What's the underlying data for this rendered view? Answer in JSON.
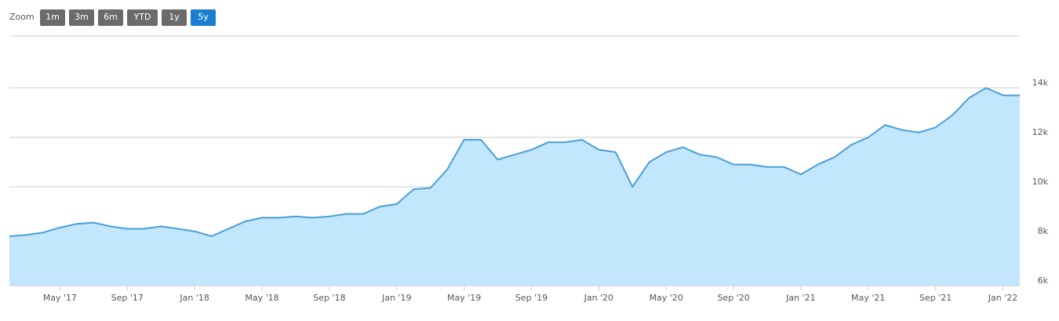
{
  "zoom": {
    "label": "Zoom",
    "buttons": [
      "1m",
      "3m",
      "6m",
      "YTD",
      "1y",
      "5y"
    ],
    "active": "5y"
  },
  "chart_data": {
    "type": "area",
    "x": [
      "2017-02",
      "2017-03",
      "2017-04",
      "2017-05",
      "2017-06",
      "2017-07",
      "2017-08",
      "2017-09",
      "2017-10",
      "2017-11",
      "2017-12",
      "2018-01",
      "2018-02",
      "2018-03",
      "2018-04",
      "2018-05",
      "2018-06",
      "2018-07",
      "2018-08",
      "2018-09",
      "2018-10",
      "2018-11",
      "2018-12",
      "2019-01",
      "2019-02",
      "2019-03",
      "2019-04",
      "2019-05",
      "2019-06",
      "2019-07",
      "2019-08",
      "2019-09",
      "2019-10",
      "2019-11",
      "2019-12",
      "2020-01",
      "2020-02",
      "2020-03",
      "2020-04",
      "2020-05",
      "2020-06",
      "2020-07",
      "2020-08",
      "2020-09",
      "2020-10",
      "2020-11",
      "2020-12",
      "2021-01",
      "2021-02",
      "2021-03",
      "2021-04",
      "2021-05",
      "2021-06",
      "2021-07",
      "2021-08",
      "2021-09",
      "2021-10",
      "2021-11",
      "2021-12",
      "2022-01",
      "2022-02"
    ],
    "values": [
      8000,
      8050,
      8150,
      8350,
      8500,
      8550,
      8400,
      8300,
      8300,
      8400,
      8300,
      8200,
      8000,
      8300,
      8600,
      8750,
      8750,
      8800,
      8750,
      8800,
      8900,
      8900,
      9200,
      9300,
      9900,
      9950,
      10700,
      11900,
      11900,
      11100,
      11300,
      11500,
      11800,
      11800,
      11900,
      11500,
      11400,
      10000,
      11000,
      11400,
      11600,
      11300,
      11200,
      10900,
      10900,
      10800,
      10800,
      10500,
      10900,
      11200,
      11700,
      12000,
      12500,
      12300,
      12200,
      12400,
      12900,
      13600,
      14000,
      13700,
      13700
    ],
    "color": "#4a9fd8",
    "fill": "#c2e6fb",
    "xlim": [
      "2017-02",
      "2022-02"
    ],
    "xticks": [
      {
        "value": "2017-05",
        "label": "May '17"
      },
      {
        "value": "2017-09",
        "label": "Sep '17"
      },
      {
        "value": "2018-01",
        "label": "Jan '18"
      },
      {
        "value": "2018-05",
        "label": "May '18"
      },
      {
        "value": "2018-09",
        "label": "Sep '18"
      },
      {
        "value": "2019-01",
        "label": "Jan '19"
      },
      {
        "value": "2019-05",
        "label": "May '19"
      },
      {
        "value": "2019-09",
        "label": "Sep '19"
      },
      {
        "value": "2020-01",
        "label": "Jan '20"
      },
      {
        "value": "2020-05",
        "label": "May '20"
      },
      {
        "value": "2020-09",
        "label": "Sep '20"
      },
      {
        "value": "2021-01",
        "label": "Jan '21"
      },
      {
        "value": "2021-05",
        "label": "May '21"
      },
      {
        "value": "2021-09",
        "label": "Sep '21"
      },
      {
        "value": "2022-01",
        "label": "Jan '22"
      }
    ],
    "ylim": [
      6000,
      16000
    ],
    "yticks": [
      {
        "value": 6000,
        "label": "6k"
      },
      {
        "value": 8000,
        "label": "8k"
      },
      {
        "value": 10000,
        "label": "10k"
      },
      {
        "value": 12000,
        "label": "12k"
      },
      {
        "value": 14000,
        "label": "14k"
      }
    ],
    "grid": true
  }
}
